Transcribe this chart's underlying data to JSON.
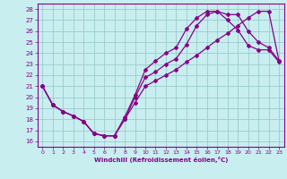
{
  "xlabel": "Windchill (Refroidissement éolien,°C)",
  "xlim": [
    -0.5,
    23.5
  ],
  "ylim": [
    15.5,
    28.5
  ],
  "xticks": [
    0,
    1,
    2,
    3,
    4,
    5,
    6,
    7,
    8,
    9,
    10,
    11,
    12,
    13,
    14,
    15,
    16,
    17,
    18,
    19,
    20,
    21,
    22,
    23
  ],
  "yticks": [
    16,
    17,
    18,
    19,
    20,
    21,
    22,
    23,
    24,
    25,
    26,
    27,
    28
  ],
  "bg_color": "#c8eef0",
  "line_color": "#880088",
  "grid_color": "#99cccc",
  "lines": [
    {
      "x": [
        0,
        1,
        2,
        3,
        4,
        5,
        6,
        7,
        8,
        9,
        10,
        11,
        12,
        13,
        14,
        15,
        16,
        17,
        18,
        19,
        20,
        21,
        22,
        23
      ],
      "y": [
        21.0,
        19.3,
        18.7,
        18.3,
        17.8,
        16.7,
        16.5,
        16.5,
        18.0,
        20.0,
        21.8,
        22.3,
        23.0,
        23.5,
        24.8,
        26.5,
        27.5,
        27.8,
        27.0,
        26.1,
        24.7,
        24.3,
        24.3,
        23.2
      ]
    },
    {
      "x": [
        0,
        1,
        2,
        3,
        4,
        5,
        6,
        7,
        8,
        9,
        10,
        11,
        12,
        13,
        14,
        15,
        16,
        17,
        18,
        19,
        20,
        21,
        22,
        23
      ],
      "y": [
        21.0,
        19.3,
        18.7,
        18.3,
        17.8,
        16.7,
        16.5,
        16.5,
        18.2,
        20.2,
        22.5,
        23.3,
        24.0,
        24.5,
        26.2,
        27.2,
        27.8,
        27.8,
        27.5,
        27.5,
        26.0,
        25.0,
        24.5,
        23.3
      ]
    },
    {
      "x": [
        0,
        1,
        2,
        3,
        4,
        5,
        6,
        7,
        8,
        9,
        10,
        11,
        12,
        13,
        14,
        15,
        16,
        17,
        18,
        19,
        20,
        21,
        22,
        23
      ],
      "y": [
        21.0,
        19.3,
        18.7,
        18.3,
        17.8,
        16.7,
        16.5,
        16.5,
        18.0,
        19.5,
        21.0,
        21.5,
        22.0,
        22.5,
        23.2,
        23.8,
        24.5,
        25.2,
        25.8,
        26.5,
        27.2,
        27.8,
        27.8,
        23.3
      ]
    }
  ]
}
